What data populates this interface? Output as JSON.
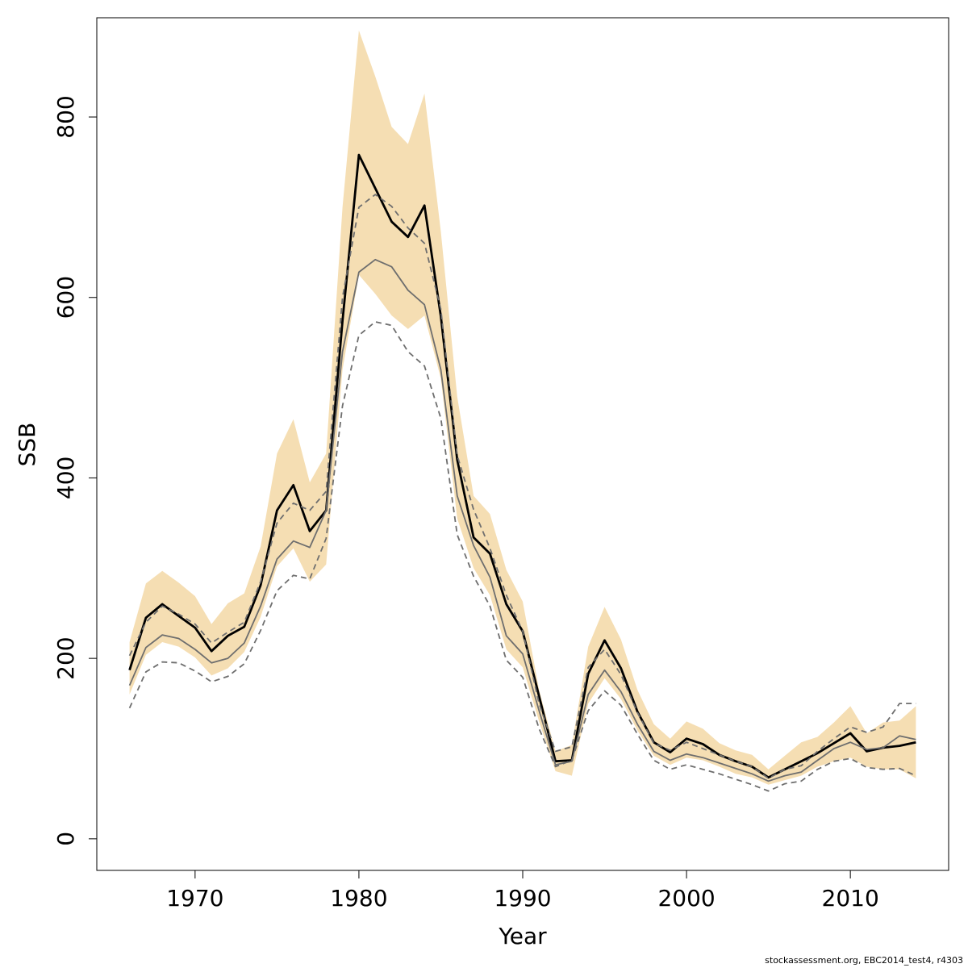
{
  "chart_data": {
    "type": "line",
    "xlabel": "Year",
    "ylabel": "SSB",
    "xlim": [
      1964,
      2016
    ],
    "ylim": [
      -35,
      910
    ],
    "x_ticks": [
      1970,
      1980,
      1990,
      2000,
      2010
    ],
    "y_ticks": [
      0,
      200,
      400,
      600,
      800
    ],
    "grid": false,
    "band_color": "#f5deb3",
    "years": [
      1966,
      1967,
      1968,
      1969,
      1970,
      1971,
      1972,
      1973,
      1974,
      1975,
      1976,
      1977,
      1978,
      1979,
      1980,
      1981,
      1982,
      1983,
      1984,
      1985,
      1986,
      1987,
      1988,
      1989,
      1990,
      1991,
      1992,
      1993,
      1994,
      1995,
      1996,
      1997,
      1998,
      1999,
      2000,
      2001,
      2002,
      2003,
      2004,
      2005,
      2006,
      2007,
      2008,
      2009,
      2010,
      2011,
      2012,
      2013,
      2014
    ],
    "band_upper": [
      218,
      283,
      297,
      284,
      269,
      238,
      261,
      272,
      324,
      427,
      465,
      395,
      427,
      700,
      896,
      845,
      789,
      770,
      826,
      673,
      490,
      380,
      360,
      298,
      263,
      165,
      97,
      104,
      213,
      257,
      221,
      165,
      127,
      111,
      130,
      122,
      106,
      98,
      93,
      77,
      92,
      107,
      113,
      129,
      147,
      117,
      129,
      131,
      147
    ],
    "band_lower": [
      160,
      204,
      218,
      213,
      201,
      181,
      189,
      207,
      246,
      302,
      322,
      285,
      304,
      520,
      625,
      604,
      580,
      565,
      580,
      510,
      355,
      300,
      270,
      210,
      190,
      130,
      75,
      70,
      150,
      178,
      155,
      120,
      92,
      82,
      90,
      87,
      80,
      72,
      68,
      60,
      65,
      70,
      80,
      86,
      90,
      80,
      77,
      77,
      67
    ],
    "series": [
      {
        "values": [
          187,
          245,
          260,
          247,
          234,
          208,
          225,
          235,
          281,
          364,
          392,
          341,
          364,
          574,
          758,
          721,
          684,
          667,
          702,
          579,
          420,
          334,
          316,
          260,
          230,
          158,
          86,
          87,
          183,
          220,
          189,
          141,
          107,
          96,
          111,
          105,
          93,
          86,
          80,
          68,
          77,
          86,
          95,
          106,
          117,
          97,
          101,
          103,
          107
        ],
        "color": "#000000",
        "width": 2.8,
        "dash": ""
      },
      {
        "values": [
          170,
          212,
          226,
          222,
          210,
          195,
          200,
          217,
          258,
          310,
          330,
          323,
          364,
          540,
          628,
          642,
          634,
          608,
          592,
          520,
          380,
          325,
          290,
          225,
          205,
          142,
          82,
          86,
          160,
          187,
          163,
          127,
          97,
          87,
          94,
          90,
          84,
          78,
          72,
          64,
          70,
          74,
          87,
          100,
          107,
          99,
          101,
          114,
          110
        ],
        "color": "#6e6e6e",
        "width": 1.8,
        "dash": ""
      },
      {
        "values": [
          203,
          240,
          258,
          249,
          238,
          217,
          229,
          240,
          285,
          350,
          372,
          364,
          385,
          600,
          700,
          714,
          701,
          677,
          660,
          587,
          425,
          365,
          322,
          270,
          230,
          150,
          97,
          102,
          190,
          210,
          182,
          140,
          106,
          98,
          107,
          100,
          93,
          86,
          80,
          67,
          77,
          81,
          97,
          111,
          124,
          118,
          124,
          150,
          150
        ],
        "color": "#6e6e6e",
        "width": 1.8,
        "dash": "7,5"
      },
      {
        "values": [
          145,
          185,
          196,
          195,
          186,
          174,
          180,
          194,
          231,
          275,
          292,
          288,
          333,
          480,
          558,
          573,
          569,
          540,
          524,
          466,
          337,
          291,
          258,
          198,
          179,
          122,
          80,
          87,
          142,
          164,
          148,
          116,
          87,
          77,
          82,
          77,
          72,
          66,
          60,
          53,
          61,
          64,
          77,
          86,
          89,
          79,
          77,
          78,
          70
        ],
        "color": "#6e6e6e",
        "width": 1.8,
        "dash": "7,5"
      }
    ]
  },
  "footer": {
    "text": "stockassessment.org, EBC2014_test4, r4303"
  }
}
